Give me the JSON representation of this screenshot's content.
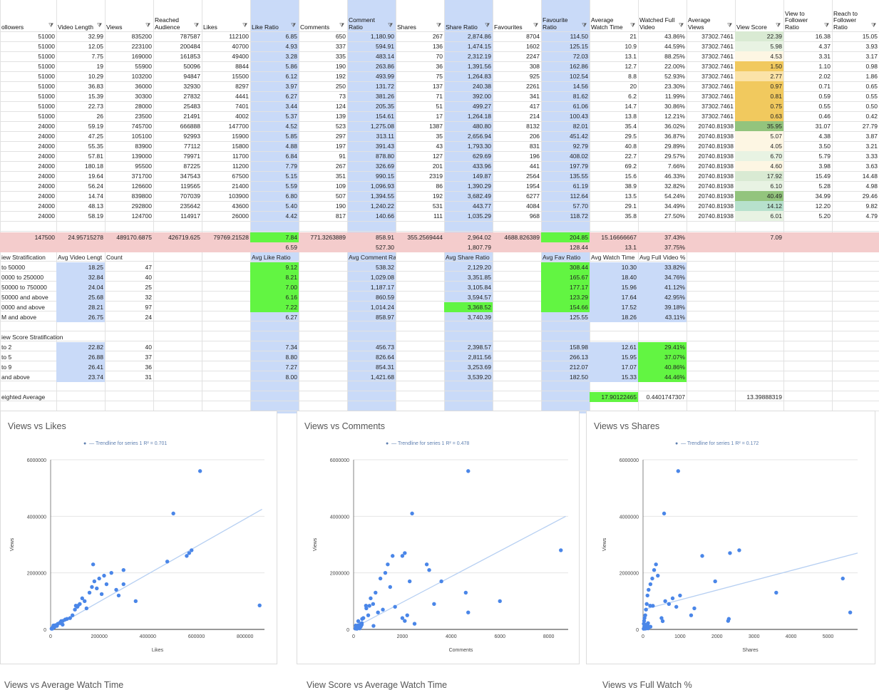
{
  "headers": [
    "ollowers",
    "Video Length",
    "Views",
    "Reached Audience",
    "Likes",
    "Like Ratio",
    "Comments",
    "Comment Ratio",
    "Shares",
    "Share Ratio",
    "Favourites",
    "Favourite Ratio",
    "Average Watch Time",
    "Watched Full Video",
    "Average Views",
    "View Score",
    "View to Follower Ratio",
    "Reach to Follower Ratio"
  ],
  "rows": [
    [
      "51000",
      "32.99",
      "835200",
      "787587",
      "112100",
      "6.85",
      "650",
      "1,180.90",
      "267",
      "2,874.86",
      "8704",
      "114.50",
      "21",
      "43.86%",
      "37302.7461",
      "22.39",
      "16.38",
      "15.05"
    ],
    [
      "51000",
      "12.05",
      "223100",
      "200484",
      "40700",
      "4.93",
      "337",
      "594.91",
      "136",
      "1,474.15",
      "1602",
      "125.15",
      "10.9",
      "44.59%",
      "37302.7461",
      "5.98",
      "4.37",
      "3.93"
    ],
    [
      "51000",
      "7.75",
      "169000",
      "161853",
      "49400",
      "3.28",
      "335",
      "483.14",
      "70",
      "2,312.19",
      "2247",
      "72.03",
      "13.1",
      "88.25%",
      "37302.7461",
      "4.53",
      "3.31",
      "3.17"
    ],
    [
      "51000",
      "19",
      "55900",
      "50096",
      "8844",
      "5.86",
      "190",
      "263.86",
      "36",
      "1,391.56",
      "308",
      "162.86",
      "12.7",
      "22.00%",
      "37302.7461",
      "1.50",
      "1.10",
      "0.98"
    ],
    [
      "51000",
      "10.29",
      "103200",
      "94847",
      "15500",
      "6.12",
      "192",
      "493.99",
      "75",
      "1,264.83",
      "925",
      "102.54",
      "8.8",
      "52.93%",
      "37302.7461",
      "2.77",
      "2.02",
      "1.86"
    ],
    [
      "51000",
      "36.83",
      "36000",
      "32930",
      "8297",
      "3.97",
      "250",
      "131.72",
      "137",
      "240.38",
      "2261",
      "14.56",
      "20",
      "23.30%",
      "37302.7461",
      "0.97",
      "0.71",
      "0.65"
    ],
    [
      "51000",
      "15.39",
      "30300",
      "27832",
      "4441",
      "6.27",
      "73",
      "381.26",
      "71",
      "392.00",
      "341",
      "81.62",
      "6.2",
      "11.99%",
      "37302.7461",
      "0.81",
      "0.59",
      "0.55"
    ],
    [
      "51000",
      "22.73",
      "28000",
      "25483",
      "7401",
      "3.44",
      "124",
      "205.35",
      "51",
      "499.27",
      "417",
      "61.06",
      "14.7",
      "30.86%",
      "37302.7461",
      "0.75",
      "0.55",
      "0.50"
    ],
    [
      "51000",
      "26",
      "23500",
      "21491",
      "4002",
      "5.37",
      "139",
      "154.61",
      "17",
      "1,264.18",
      "214",
      "100.43",
      "13.8",
      "12.21%",
      "37302.7461",
      "0.63",
      "0.46",
      "0.42"
    ],
    [
      "24000",
      "59.19",
      "745700",
      "666888",
      "147700",
      "4.52",
      "523",
      "1,275.08",
      "1387",
      "480.80",
      "8132",
      "82.01",
      "35.4",
      "36.02%",
      "20740.81938",
      "35.95",
      "31.07",
      "27.79"
    ],
    [
      "24000",
      "47.25",
      "105100",
      "92993",
      "15900",
      "5.85",
      "297",
      "313.11",
      "35",
      "2,656.94",
      "206",
      "451.42",
      "29.5",
      "36.87%",
      "20740.81938",
      "5.07",
      "4.38",
      "3.87"
    ],
    [
      "24000",
      "55.35",
      "83900",
      "77112",
      "15800",
      "4.88",
      "197",
      "391.43",
      "43",
      "1,793.30",
      "831",
      "92.79",
      "40.8",
      "29.89%",
      "20740.81938",
      "4.05",
      "3.50",
      "3.21"
    ],
    [
      "24000",
      "57.81",
      "139000",
      "79971",
      "11700",
      "6.84",
      "91",
      "878.80",
      "127",
      "629.69",
      "196",
      "408.02",
      "22.7",
      "29.57%",
      "20740.81938",
      "6.70",
      "5.79",
      "3.33"
    ],
    [
      "24000",
      "180.18",
      "95500",
      "87225",
      "11200",
      "7.79",
      "267",
      "326.69",
      "201",
      "433.96",
      "441",
      "197.79",
      "69.2",
      "7.66%",
      "20740.81938",
      "4.60",
      "3.98",
      "3.63"
    ],
    [
      "24000",
      "19.64",
      "371700",
      "347543",
      "67500",
      "5.15",
      "351",
      "990.15",
      "2319",
      "149.87",
      "2564",
      "135.55",
      "15.6",
      "46.33%",
      "20740.81938",
      "17.92",
      "15.49",
      "14.48"
    ],
    [
      "24000",
      "56.24",
      "126600",
      "119565",
      "21400",
      "5.59",
      "109",
      "1,096.93",
      "86",
      "1,390.29",
      "1954",
      "61.19",
      "38.9",
      "32.82%",
      "20740.81938",
      "6.10",
      "5.28",
      "4.98"
    ],
    [
      "24000",
      "14.74",
      "839800",
      "707039",
      "103900",
      "6.80",
      "507",
      "1,394.55",
      "192",
      "3,682.49",
      "6277",
      "112.64",
      "13.5",
      "54.24%",
      "20740.81938",
      "40.49",
      "34.99",
      "29.46"
    ],
    [
      "24000",
      "48.13",
      "292800",
      "235642",
      "43600",
      "5.40",
      "190",
      "1,240.22",
      "531",
      "443.77",
      "4084",
      "57.70",
      "29.1",
      "34.49%",
      "20740.81938",
      "14.12",
      "12.20",
      "9.82"
    ],
    [
      "24000",
      "58.19",
      "124700",
      "114917",
      "26000",
      "4.42",
      "817",
      "140.66",
      "111",
      "1,035.29",
      "968",
      "118.72",
      "35.8",
      "27.50%",
      "20740.81938",
      "6.01",
      "5.20",
      "4.79"
    ]
  ],
  "avg_row": [
    "147500",
    "24.95715278",
    "489170.6875",
    "426719.625",
    "79769.21528",
    "7.84",
    "771.3263889",
    "858.91",
    "355.2569444",
    "2,964.02",
    "4688.826389",
    "204.85",
    "15.16666667",
    "37.43%",
    "",
    "7.09",
    "",
    ""
  ],
  "median_row": [
    "",
    "",
    "",
    "",
    "",
    "6.59",
    "",
    "527.30",
    "",
    "1,807.79",
    "",
    "128.44",
    "13.1",
    "37.75%",
    "",
    "",
    "",
    ""
  ],
  "strat1": {
    "title": "iew Stratification",
    "headers": [
      "Avg Video Lengt",
      "Count",
      "Avg Like Ratio",
      "Avg Comment Ratio",
      "Avg Share Ratio",
      "Avg Fav Ratio",
      "Avg Watch Time",
      "Avg Full Video %"
    ],
    "rows": [
      {
        "label": "to 50000",
        "len": "18.25",
        "count": "47",
        "like": "9.12",
        "comment": "538.32",
        "share": "2,129.20",
        "fav": "308.44",
        "watch": "10.30",
        "full": "33.82%"
      },
      {
        "label": "0000 to 250000",
        "len": "32.84",
        "count": "40",
        "like": "8.21",
        "comment": "1,029.08",
        "share": "3,351.85",
        "fav": "165.67",
        "watch": "18.40",
        "full": "34.76%"
      },
      {
        "label": "50000 to 750000",
        "len": "24.04",
        "count": "25",
        "like": "7.00",
        "comment": "1,187.17",
        "share": "3,105.84",
        "fav": "177.17",
        "watch": "15.96",
        "full": "41.12%"
      },
      {
        "label": "50000 and above",
        "len": "25.68",
        "count": "32",
        "like": "6.16",
        "comment": "860.59",
        "share": "3,594.57",
        "fav": "123.29",
        "watch": "17.64",
        "full": "42.95%"
      },
      {
        "label": "0000 and above",
        "len": "28.21",
        "count": "97",
        "like": "7.22",
        "comment": "1,014.24",
        "share": "3,368.52",
        "fav": "154.66",
        "watch": "17.52",
        "full": "39.18%"
      },
      {
        "label": "M and above",
        "len": "26.75",
        "count": "24",
        "like": "6.27",
        "comment": "858.97",
        "share": "3,740.39",
        "fav": "125.55",
        "watch": "18.26",
        "full": "43.11%"
      }
    ]
  },
  "strat2": {
    "title": "iew Score Stratification",
    "rows": [
      {
        "label": "to 2",
        "len": "22.82",
        "count": "40",
        "like": "7.34",
        "comment": "456.73",
        "share": "2,398.57",
        "fav": "158.98",
        "watch": "12.61",
        "full": "29.41%"
      },
      {
        "label": "to 5",
        "len": "26.88",
        "count": "37",
        "like": "8.80",
        "comment": "826.64",
        "share": "2,811.56",
        "fav": "266.13",
        "watch": "15.95",
        "full": "37.07%"
      },
      {
        "label": "to 9",
        "len": "26.41",
        "count": "36",
        "like": "7.27",
        "comment": "854.31",
        "share": "3,253.69",
        "fav": "212.07",
        "watch": "17.07",
        "full": "40.86%"
      },
      {
        "label": "and above",
        "len": "23.74",
        "count": "31",
        "like": "8.00",
        "comment": "1,421.68",
        "share": "3,539.20",
        "fav": "182.50",
        "watch": "15.33",
        "full": "44.46%"
      }
    ]
  },
  "weighted": {
    "label": "eighted Average",
    "watch": "17.90122465",
    "full": "0.4401747307",
    "score": "13.39888319"
  },
  "colors": {
    "band": "#c9daf8",
    "green": "#62f542",
    "pink": "#f4cccc",
    "point": "#4a86e8",
    "trend": "#b6cff2"
  },
  "chart_data": [
    {
      "type": "scatter",
      "title": "Views vs Likes",
      "xlabel": "Likes",
      "ylabel": "Views",
      "legend": "Trendline for series 1 R² = 0.701",
      "xticks": [
        "0",
        "200000",
        "400000",
        "600000",
        "800000"
      ],
      "yticks": [
        "0",
        "2000000",
        "4000000",
        "6000000"
      ],
      "xlim": [
        0,
        880000
      ],
      "ylim": [
        0,
        6000000
      ],
      "trend": [
        [
          0,
          0
        ],
        [
          870000,
          4250000
        ]
      ],
      "points": [
        [
          112100,
          835200
        ],
        [
          40700,
          223100
        ],
        [
          49400,
          169000
        ],
        [
          8844,
          55900
        ],
        [
          15500,
          103200
        ],
        [
          8297,
          36000
        ],
        [
          4441,
          30300
        ],
        [
          7401,
          28000
        ],
        [
          4002,
          23500
        ],
        [
          147700,
          745700
        ],
        [
          15900,
          105100
        ],
        [
          15800,
          83900
        ],
        [
          11700,
          139000
        ],
        [
          11200,
          95500
        ],
        [
          67500,
          371700
        ],
        [
          21400,
          126600
        ],
        [
          103900,
          839800
        ],
        [
          43600,
          292800
        ],
        [
          26000,
          124700
        ],
        [
          615000,
          5600000
        ],
        [
          505000,
          4100000
        ],
        [
          580000,
          2800000
        ],
        [
          570000,
          2700000
        ],
        [
          560000,
          2600000
        ],
        [
          480000,
          2400000
        ],
        [
          860000,
          850000
        ],
        [
          300000,
          2100000
        ],
        [
          250000,
          2000000
        ],
        [
          220000,
          1900000
        ],
        [
          200000,
          1800000
        ],
        [
          180000,
          1700000
        ],
        [
          170000,
          1500000
        ],
        [
          160000,
          1300000
        ],
        [
          230000,
          1600000
        ],
        [
          280000,
          1200000
        ],
        [
          130000,
          1100000
        ],
        [
          120000,
          900000
        ],
        [
          100000,
          700000
        ],
        [
          90000,
          500000
        ],
        [
          80000,
          400000
        ],
        [
          60000,
          350000
        ],
        [
          50000,
          300000
        ],
        [
          40000,
          250000
        ],
        [
          30000,
          200000
        ],
        [
          20000,
          150000
        ],
        [
          10000,
          80000
        ],
        [
          5000,
          40000
        ],
        [
          300000,
          1600000
        ],
        [
          270000,
          1400000
        ],
        [
          140000,
          1000000
        ],
        [
          110000,
          800000
        ],
        [
          175000,
          2300000
        ],
        [
          190000,
          1450000
        ],
        [
          350000,
          1000000
        ],
        [
          210000,
          1250000
        ]
      ]
    },
    {
      "type": "scatter",
      "title": "Views vs Comments",
      "xlabel": "Comments",
      "ylabel": "Views",
      "legend": "Trendline for series 1 R² = 0.478",
      "xticks": [
        "0",
        "2000",
        "4000",
        "6000",
        "8000"
      ],
      "yticks": [
        "0",
        "2000000",
        "4000000",
        "6000000"
      ],
      "xlim": [
        0,
        8800
      ],
      "ylim": [
        0,
        6000000
      ],
      "trend": [
        [
          0,
          50000
        ],
        [
          8700,
          4000000
        ]
      ],
      "points": [
        [
          650,
          835200
        ],
        [
          337,
          223100
        ],
        [
          335,
          169000
        ],
        [
          190,
          55900
        ],
        [
          192,
          103200
        ],
        [
          250,
          36000
        ],
        [
          73,
          30300
        ],
        [
          124,
          28000
        ],
        [
          139,
          23500
        ],
        [
          523,
          745700
        ],
        [
          297,
          105100
        ],
        [
          197,
          83900
        ],
        [
          91,
          139000
        ],
        [
          267,
          95500
        ],
        [
          351,
          371700
        ],
        [
          109,
          126600
        ],
        [
          507,
          839800
        ],
        [
          190,
          292800
        ],
        [
          817,
          124700
        ],
        [
          4700,
          5600000
        ],
        [
          2400,
          4100000
        ],
        [
          8500,
          2800000
        ],
        [
          2100,
          2700000
        ],
        [
          2000,
          2600000
        ],
        [
          1600,
          2600000
        ],
        [
          1400,
          2300000
        ],
        [
          3000,
          2300000
        ],
        [
          3100,
          2100000
        ],
        [
          1300,
          2000000
        ],
        [
          1100,
          1800000
        ],
        [
          3600,
          1700000
        ],
        [
          2300,
          1700000
        ],
        [
          1500,
          1500000
        ],
        [
          900,
          1300000
        ],
        [
          700,
          1100000
        ],
        [
          4600,
          1300000
        ],
        [
          6000,
          1000000
        ],
        [
          4700,
          600000
        ],
        [
          3300,
          900000
        ],
        [
          2200,
          500000
        ],
        [
          2000,
          400000
        ],
        [
          2100,
          300000
        ],
        [
          1200,
          700000
        ],
        [
          800,
          900000
        ],
        [
          600,
          500000
        ],
        [
          400,
          400000
        ],
        [
          300,
          200000
        ],
        [
          200,
          150000
        ],
        [
          100,
          80000
        ],
        [
          1000,
          600000
        ],
        [
          1700,
          800000
        ],
        [
          2500,
          200000
        ]
      ]
    },
    {
      "type": "scatter",
      "title": "Views vs Shares",
      "xlabel": "Shares",
      "ylabel": "Views",
      "legend": "Trendline for series 1 R² = 0.172",
      "xticks": [
        "0",
        "1000",
        "2000",
        "3000",
        "4000",
        "5000"
      ],
      "yticks": [
        "0",
        "2000000",
        "4000000",
        "6000000"
      ],
      "xlim": [
        0,
        5800
      ],
      "ylim": [
        0,
        6000000
      ],
      "trend": [
        [
          0,
          700000
        ],
        [
          5800,
          2700000
        ]
      ],
      "points": [
        [
          267,
          835200
        ],
        [
          136,
          223100
        ],
        [
          70,
          169000
        ],
        [
          36,
          55900
        ],
        [
          75,
          103200
        ],
        [
          137,
          36000
        ],
        [
          71,
          30300
        ],
        [
          51,
          28000
        ],
        [
          17,
          23500
        ],
        [
          1387,
          745700
        ],
        [
          35,
          105100
        ],
        [
          43,
          83900
        ],
        [
          127,
          139000
        ],
        [
          201,
          95500
        ],
        [
          2319,
          371700
        ],
        [
          86,
          126600
        ],
        [
          192,
          839800
        ],
        [
          531,
          292800
        ],
        [
          111,
          124700
        ],
        [
          950,
          5600000
        ],
        [
          570,
          4100000
        ],
        [
          2600,
          2800000
        ],
        [
          2350,
          2700000
        ],
        [
          1600,
          2600000
        ],
        [
          1950,
          1700000
        ],
        [
          5400,
          1800000
        ],
        [
          5600,
          600000
        ],
        [
          3600,
          1300000
        ],
        [
          1000,
          1200000
        ],
        [
          800,
          1100000
        ],
        [
          600,
          1000000
        ],
        [
          400,
          1900000
        ],
        [
          350,
          2300000
        ],
        [
          300,
          2100000
        ],
        [
          250,
          1800000
        ],
        [
          200,
          1600000
        ],
        [
          150,
          1400000
        ],
        [
          120,
          1200000
        ],
        [
          100,
          900000
        ],
        [
          80,
          700000
        ],
        [
          60,
          500000
        ],
        [
          40,
          400000
        ],
        [
          30,
          300000
        ],
        [
          20,
          200000
        ],
        [
          700,
          900000
        ],
        [
          1300,
          500000
        ],
        [
          2300,
          300000
        ],
        [
          500,
          400000
        ],
        [
          900,
          800000
        ]
      ]
    }
  ],
  "bottom_titles": [
    "Views vs Average Watch Time",
    "View Score vs Average Watch Time",
    "Views vs Full Watch %"
  ]
}
